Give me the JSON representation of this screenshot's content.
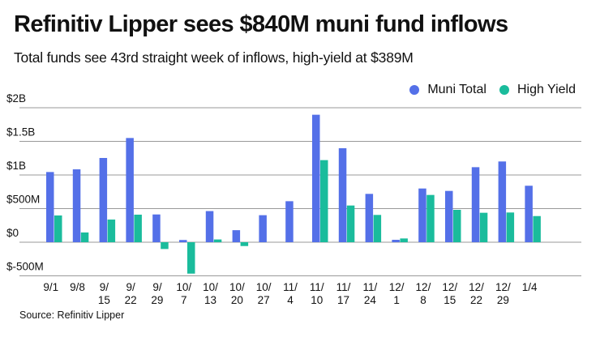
{
  "header": {
    "title": "Refinitiv Lipper sees $840M muni fund inflows",
    "subtitle": "Total funds see 43rd straight week of inflows, high-yield at $389M"
  },
  "footer": {
    "source": "Source: Refinitiv Lipper"
  },
  "chart_data": {
    "type": "bar",
    "title": "Refinitiv Lipper sees $840M muni fund inflows",
    "subtitle": "Total funds see 43rd straight week of inflows, high-yield at $389M",
    "xlabel": "",
    "ylabel": "",
    "units": "millions USD",
    "ylim": [
      -600,
      2000
    ],
    "yticks": [
      -500,
      0,
      500,
      1000,
      1500,
      2000
    ],
    "ytick_labels": [
      "$-500M",
      "$0",
      "$500M",
      "$1B",
      "$1.5B",
      "$2B"
    ],
    "grid": "horizontal",
    "legend_position": "top-right",
    "categories": [
      "9/1",
      "9/8",
      "9/15",
      "9/22",
      "9/29",
      "10/7",
      "10/13",
      "10/20",
      "10/27",
      "11/4",
      "11/10",
      "11/17",
      "11/24",
      "12/1",
      "12/8",
      "12/15",
      "12/22",
      "12/29",
      "1/4"
    ],
    "category_labels": [
      [
        "9/1"
      ],
      [
        "9/8"
      ],
      [
        "9/",
        "15"
      ],
      [
        "9/",
        "22"
      ],
      [
        "9/",
        "29"
      ],
      [
        "10/",
        "7"
      ],
      [
        "10/",
        "13"
      ],
      [
        "10/",
        "20"
      ],
      [
        "10/",
        "27"
      ],
      [
        "11/",
        "4"
      ],
      [
        "11/",
        "10"
      ],
      [
        "11/",
        "17"
      ],
      [
        "11/",
        "24"
      ],
      [
        "12/",
        "1"
      ],
      [
        "12/",
        "8"
      ],
      [
        "12/",
        "15"
      ],
      [
        "12/",
        "22"
      ],
      [
        "12/",
        "29"
      ],
      [
        "1/4"
      ]
    ],
    "series": [
      {
        "name": "Muni Total",
        "color": "#5470e8",
        "values": [
          1044,
          1084,
          1253,
          1550,
          413,
          33,
          463,
          179,
          402,
          610,
          1896,
          1398,
          719,
          36,
          799,
          763,
          1116,
          1201,
          840
        ]
      },
      {
        "name": "High Yield",
        "color": "#1abc9c",
        "values": [
          398,
          145,
          337,
          410,
          -101,
          -467,
          41,
          -57,
          null,
          null,
          1221,
          546,
          406,
          56,
          703,
          482,
          438,
          442,
          389
        ]
      }
    ]
  },
  "colors": {
    "gridline": "#9a9a9a",
    "text": "#111111"
  }
}
